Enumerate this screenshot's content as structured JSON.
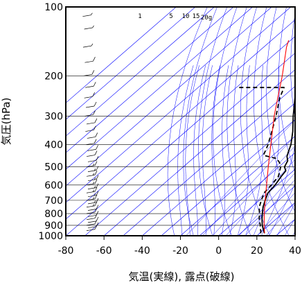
{
  "chart_data": {
    "type": "line",
    "subtype": "skew-T log-P diagram",
    "xlabel": "気温(実線), 露点(破線)",
    "ylabel": "気圧(hPa)",
    "x_ticks": [
      -80,
      -60,
      -40,
      -20,
      0,
      20,
      40
    ],
    "y_ticks": [
      100,
      200,
      300,
      400,
      500,
      600,
      700,
      800,
      900,
      1000
    ],
    "xlim": [
      -80,
      40
    ],
    "ylim": [
      1000,
      100
    ],
    "y_scale": "log",
    "mixing_ratio_labels": [
      "1",
      "5",
      "10",
      "15",
      "20g"
    ],
    "grid": true,
    "series": [
      {
        "name": "気温",
        "style": "solid",
        "color": "#000000",
        "points": [
          {
            "p": 975,
            "t": 22.5
          },
          {
            "p": 950,
            "t": 20.5
          },
          {
            "p": 925,
            "t": 18.5
          },
          {
            "p": 900,
            "t": 16.5
          },
          {
            "p": 850,
            "t": 13.0
          },
          {
            "p": 800,
            "t": 9.5
          },
          {
            "p": 750,
            "t": 6.0
          },
          {
            "p": 700,
            "t": 3.0
          },
          {
            "p": 650,
            "t": 0.0
          },
          {
            "p": 600,
            "t": -1.0
          },
          {
            "p": 550,
            "t": -3.0
          },
          {
            "p": 520,
            "t": -4.0
          },
          {
            "p": 500,
            "t": -7.0
          },
          {
            "p": 470,
            "t": -9.0
          },
          {
            "p": 450,
            "t": -12.0
          },
          {
            "p": 430,
            "t": -14.0
          },
          {
            "p": 400,
            "t": -17.0
          },
          {
            "p": 350,
            "t": -24.0
          },
          {
            "p": 300,
            "t": -33.0
          },
          {
            "p": 250,
            "t": -43.0
          },
          {
            "p": 200,
            "t": -53.0
          },
          {
            "p": 175,
            "t": -58.0
          },
          {
            "p": 150,
            "t": -64.0
          },
          {
            "p": 130,
            "t": -71.0
          },
          {
            "p": 120,
            "t": -75.0
          },
          {
            "p": 112,
            "t": -74.0
          },
          {
            "p": 105,
            "t": -73.0
          },
          {
            "p": 100,
            "t": -73.0
          }
        ]
      },
      {
        "name": "露点",
        "style": "dashed",
        "color": "#000000",
        "points": [
          {
            "p": 975,
            "t": 20.5
          },
          {
            "p": 950,
            "t": 19.0
          },
          {
            "p": 925,
            "t": 17.0
          },
          {
            "p": 900,
            "t": 15.5
          },
          {
            "p": 850,
            "t": 11.5
          },
          {
            "p": 800,
            "t": 8.0
          },
          {
            "p": 750,
            "t": 4.0
          },
          {
            "p": 700,
            "t": 1.0
          },
          {
            "p": 650,
            "t": -2.0
          },
          {
            "p": 600,
            "t": -3.0
          },
          {
            "p": 550,
            "t": -4.5
          },
          {
            "p": 500,
            "t": -9.0
          },
          {
            "p": 480,
            "t": -12.0
          },
          {
            "p": 460,
            "t": -16.0
          },
          {
            "p": 445,
            "t": -25.0
          },
          {
            "p": 400,
            "t": -29.0
          },
          {
            "p": 350,
            "t": -35.0
          },
          {
            "p": 300,
            "t": -42.0
          },
          {
            "p": 250,
            "t": -51.0
          },
          {
            "p": 225,
            "t": -55.0
          },
          {
            "p": 225,
            "t": -80.0
          }
        ]
      },
      {
        "name": "",
        "style": "solid",
        "color": "#ff0000",
        "points": [
          {
            "p": 975,
            "t": 22.5
          },
          {
            "p": 900,
            "t": 17.5
          },
          {
            "p": 800,
            "t": 10.5
          },
          {
            "p": 700,
            "t": 3.0
          },
          {
            "p": 600,
            "t": -5.5
          },
          {
            "p": 500,
            "t": -15.5
          },
          {
            "p": 400,
            "t": -27.5
          },
          {
            "p": 300,
            "t": -43.0
          },
          {
            "p": 250,
            "t": -52.0
          },
          {
            "p": 200,
            "t": -63.0
          },
          {
            "p": 150,
            "t": -78.0
          },
          {
            "p": 140,
            "t": -81.0
          }
        ]
      }
    ],
    "wind_barbs": [
      {
        "p": 950,
        "speed_kt": 10
      },
      {
        "p": 925,
        "speed_kt": 10
      },
      {
        "p": 900,
        "speed_kt": 10
      },
      {
        "p": 875,
        "speed_kt": 10
      },
      {
        "p": 850,
        "speed_kt": 10
      },
      {
        "p": 825,
        "speed_kt": 10
      },
      {
        "p": 800,
        "speed_kt": 10
      },
      {
        "p": 775,
        "speed_kt": 10
      },
      {
        "p": 750,
        "speed_kt": 15
      },
      {
        "p": 725,
        "speed_kt": 15
      },
      {
        "p": 700,
        "speed_kt": 15
      },
      {
        "p": 675,
        "speed_kt": 15
      },
      {
        "p": 650,
        "speed_kt": 15
      },
      {
        "p": 625,
        "speed_kt": 15
      },
      {
        "p": 600,
        "speed_kt": 15
      },
      {
        "p": 575,
        "speed_kt": 15
      },
      {
        "p": 550,
        "speed_kt": 15
      },
      {
        "p": 525,
        "speed_kt": 15
      },
      {
        "p": 500,
        "speed_kt": 15
      },
      {
        "p": 475,
        "speed_kt": 10
      },
      {
        "p": 450,
        "speed_kt": 10
      },
      {
        "p": 425,
        "speed_kt": 10
      },
      {
        "p": 400,
        "speed_kt": 10
      },
      {
        "p": 375,
        "speed_kt": 10
      },
      {
        "p": 350,
        "speed_kt": 10
      },
      {
        "p": 325,
        "speed_kt": 10
      },
      {
        "p": 300,
        "speed_kt": 10
      },
      {
        "p": 275,
        "speed_kt": 10
      },
      {
        "p": 250,
        "speed_kt": 10
      },
      {
        "p": 225,
        "speed_kt": 10
      },
      {
        "p": 200,
        "speed_kt": 10
      },
      {
        "p": 175,
        "speed_kt": 10
      },
      {
        "p": 150,
        "speed_kt": 5
      },
      {
        "p": 125,
        "speed_kt": 5
      },
      {
        "p": 110,
        "speed_kt": 5
      }
    ],
    "colors": {
      "frame": "#000000",
      "isobar": "#000000",
      "isotherm": "#0000ff",
      "dry_adiabat": "#0000ff",
      "moist_adiabat": "#0000ff",
      "mixing_ratio": "#0000ff",
      "parcel": "#ff0000"
    }
  }
}
